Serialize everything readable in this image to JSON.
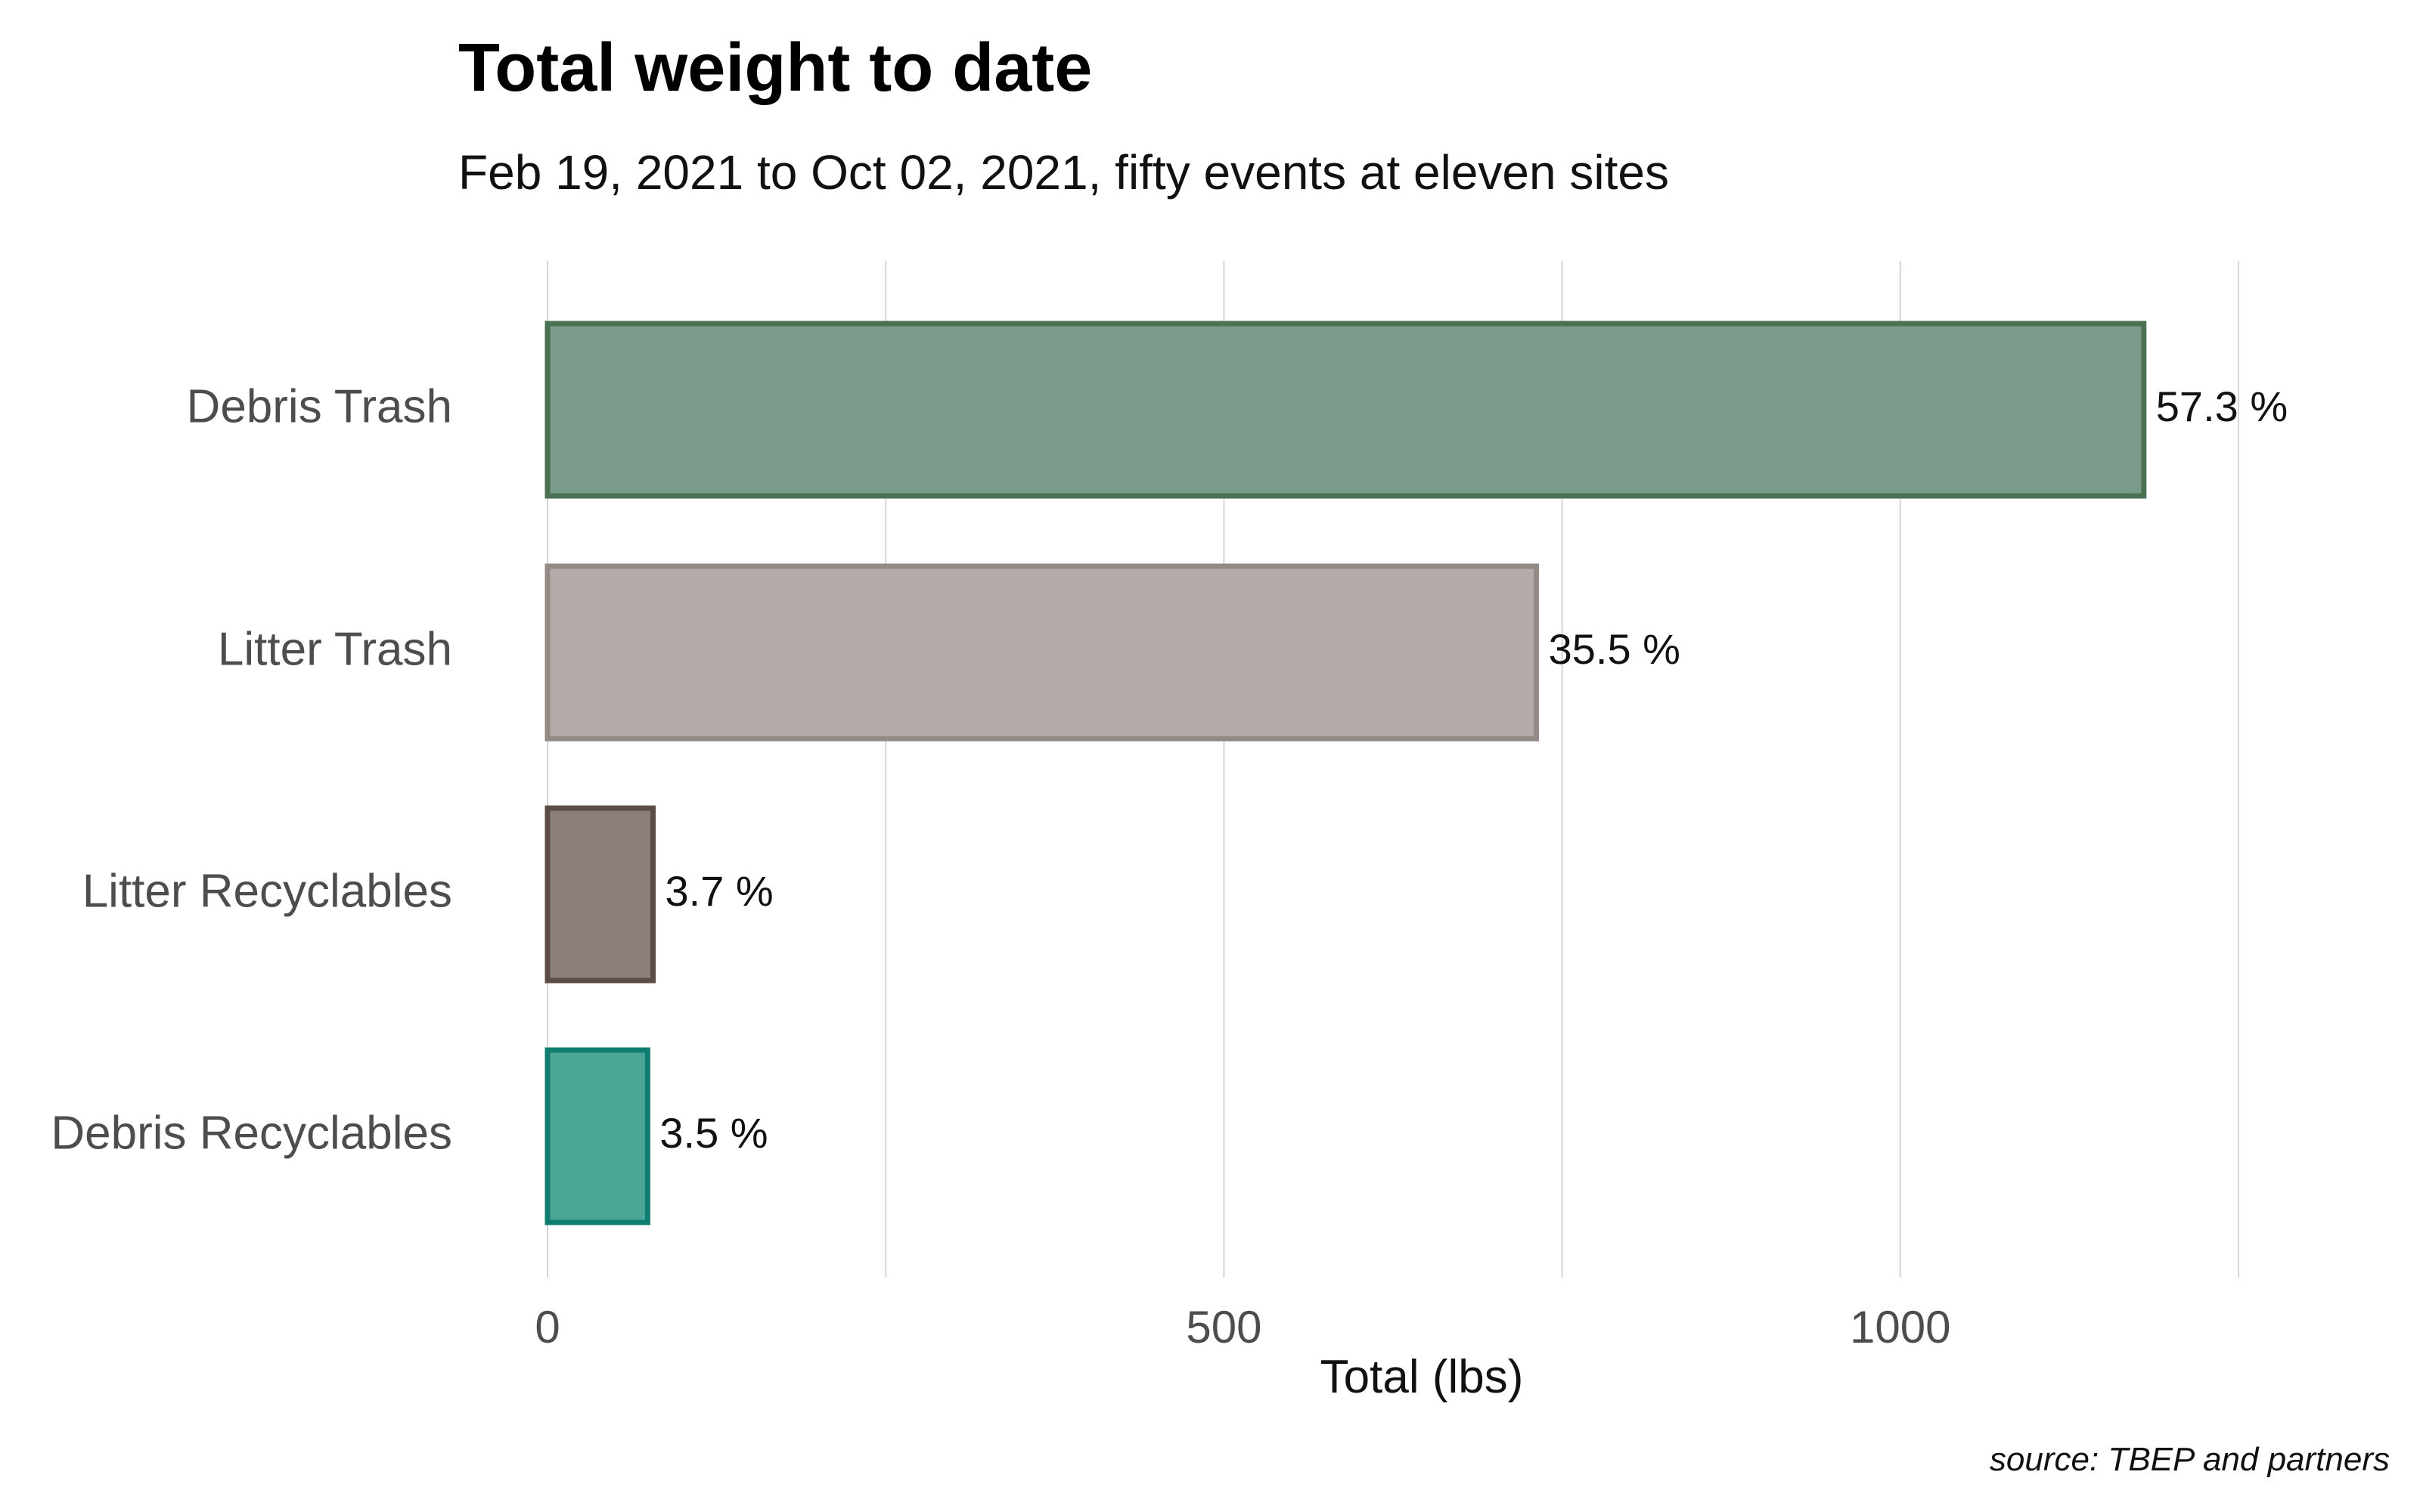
{
  "chart_data": {
    "type": "bar",
    "orientation": "horizontal",
    "title": "Total weight to date",
    "subtitle": "Feb 19, 2021 to Oct 02, 2021, fifty events at eleven sites",
    "xlabel": "Total (lbs)",
    "ylabel": "",
    "caption": "source: TBEP and partners",
    "xlim": [
      0,
      1250
    ],
    "x_ticks": [
      0,
      500,
      1000
    ],
    "x_tick_labels": [
      "0",
      "500",
      "1000"
    ],
    "x_gridlines": [
      0,
      250,
      500,
      750,
      1000,
      1250
    ],
    "grid": true,
    "legend": "none",
    "categories": [
      "Debris Trash",
      "Litter Trash",
      "Litter Recyclables",
      "Debris Recyclables"
    ],
    "values": [
      1180,
      731,
      78,
      74
    ],
    "labels": [
      "57.3 %",
      "35.5 %",
      "3.7 %",
      "3.5 %"
    ],
    "colors": {
      "fill": [
        "#7a9b89",
        "#b5aba8",
        "#8a7f7a",
        "#4ca697"
      ],
      "stroke": [
        "#4a7152",
        "#938985",
        "#5c4c47",
        "#0f7e70"
      ]
    }
  }
}
